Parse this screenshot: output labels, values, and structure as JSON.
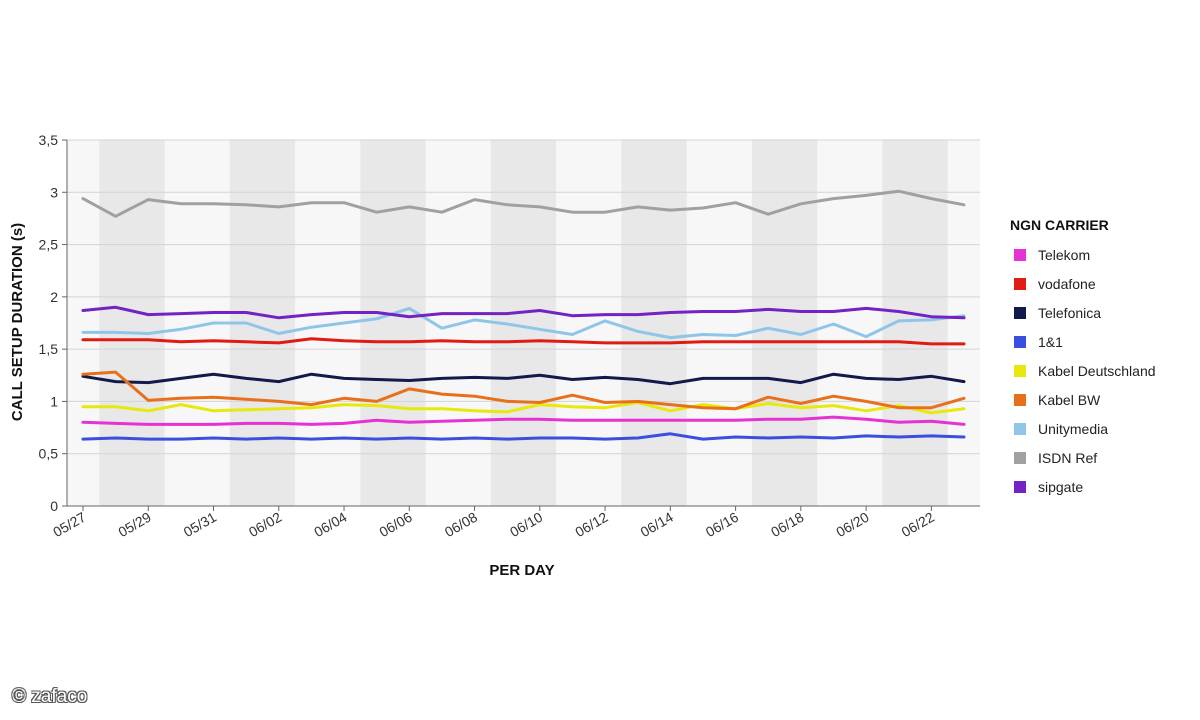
{
  "watermark": "© zafaco",
  "chart_data": {
    "type": "line",
    "xlabel": "PER DAY",
    "ylabel": "CALL SETUP DURATION (s)",
    "ylim": [
      0,
      3.5
    ],
    "yticks": [
      "0",
      "0,5",
      "1",
      "1,5",
      "2",
      "2,5",
      "3",
      "3,5"
    ],
    "x": [
      "05/27",
      "05/28",
      "05/29",
      "05/30",
      "05/31",
      "06/01",
      "06/02",
      "06/03",
      "06/04",
      "06/05",
      "06/06",
      "06/07",
      "06/08",
      "06/09",
      "06/10",
      "06/11",
      "06/12",
      "06/13",
      "06/14",
      "06/15",
      "06/16",
      "06/17",
      "06/18",
      "06/19",
      "06/20",
      "06/21",
      "06/22",
      "06/23"
    ],
    "xtick_labels": [
      "05/27",
      "05/29",
      "05/31",
      "06/02",
      "06/04",
      "06/06",
      "06/08",
      "06/10",
      "06/12",
      "06/14",
      "06/16",
      "06/18",
      "06/20",
      "06/22"
    ],
    "legend_title": "NGN CARRIER",
    "legend_position": "right",
    "grid": true,
    "series": [
      {
        "name": "Telekom",
        "color": "#e632d2",
        "values": [
          0.8,
          0.79,
          0.78,
          0.78,
          0.78,
          0.79,
          0.79,
          0.78,
          0.79,
          0.82,
          0.8,
          0.81,
          0.82,
          0.83,
          0.83,
          0.82,
          0.82,
          0.82,
          0.82,
          0.82,
          0.82,
          0.83,
          0.83,
          0.85,
          0.83,
          0.8,
          0.81,
          0.78
        ]
      },
      {
        "name": "vodafone",
        "color": "#e01b12",
        "values": [
          1.59,
          1.59,
          1.59,
          1.57,
          1.58,
          1.57,
          1.56,
          1.6,
          1.58,
          1.57,
          1.57,
          1.58,
          1.57,
          1.57,
          1.58,
          1.57,
          1.56,
          1.56,
          1.56,
          1.57,
          1.57,
          1.57,
          1.57,
          1.57,
          1.57,
          1.57,
          1.55,
          1.55
        ]
      },
      {
        "name": "Telefonica",
        "color": "#111a4a",
        "values": [
          1.24,
          1.19,
          1.18,
          1.22,
          1.26,
          1.22,
          1.19,
          1.26,
          1.22,
          1.21,
          1.2,
          1.22,
          1.23,
          1.22,
          1.25,
          1.21,
          1.23,
          1.21,
          1.17,
          1.22,
          1.22,
          1.22,
          1.18,
          1.26,
          1.22,
          1.21,
          1.24,
          1.19
        ]
      },
      {
        "name": "1&1",
        "color": "#3a4ee0",
        "values": [
          0.64,
          0.65,
          0.64,
          0.64,
          0.65,
          0.64,
          0.65,
          0.64,
          0.65,
          0.64,
          0.65,
          0.64,
          0.65,
          0.64,
          0.65,
          0.65,
          0.64,
          0.65,
          0.69,
          0.64,
          0.66,
          0.65,
          0.66,
          0.65,
          0.67,
          0.66,
          0.67,
          0.66
        ]
      },
      {
        "name": "Kabel Deutschland",
        "color": "#e8e80c",
        "values": [
          0.95,
          0.95,
          0.91,
          0.97,
          0.91,
          0.92,
          0.93,
          0.94,
          0.97,
          0.96,
          0.93,
          0.93,
          0.91,
          0.9,
          0.97,
          0.95,
          0.94,
          0.99,
          0.91,
          0.97,
          0.93,
          0.98,
          0.94,
          0.96,
          0.91,
          0.96,
          0.89,
          0.93
        ]
      },
      {
        "name": "Kabel BW",
        "color": "#e8701c",
        "values": [
          1.26,
          1.28,
          1.01,
          1.03,
          1.04,
          1.02,
          1.0,
          0.97,
          1.03,
          1.0,
          1.12,
          1.07,
          1.05,
          1.0,
          0.99,
          1.06,
          0.99,
          1.0,
          0.97,
          0.94,
          0.93,
          1.04,
          0.98,
          1.05,
          1.0,
          0.94,
          0.94,
          1.03
        ]
      },
      {
        "name": "Unitymedia",
        "color": "#8fc6e8",
        "values": [
          1.66,
          1.66,
          1.65,
          1.69,
          1.75,
          1.75,
          1.65,
          1.71,
          1.75,
          1.79,
          1.89,
          1.7,
          1.78,
          1.74,
          1.69,
          1.64,
          1.77,
          1.67,
          1.61,
          1.64,
          1.63,
          1.7,
          1.64,
          1.74,
          1.62,
          1.77,
          1.78,
          1.82
        ]
      },
      {
        "name": "ISDN Ref",
        "color": "#a0a0a0",
        "values": [
          2.94,
          2.77,
          2.93,
          2.89,
          2.89,
          2.88,
          2.86,
          2.9,
          2.9,
          2.81,
          2.86,
          2.81,
          2.93,
          2.88,
          2.86,
          2.81,
          2.81,
          2.86,
          2.83,
          2.85,
          2.9,
          2.79,
          2.89,
          2.94,
          2.97,
          3.01,
          2.94,
          2.88
        ]
      },
      {
        "name": "sipgate",
        "color": "#7322c4",
        "values": [
          1.87,
          1.9,
          1.83,
          1.84,
          1.85,
          1.85,
          1.8,
          1.83,
          1.85,
          1.85,
          1.81,
          1.84,
          1.84,
          1.84,
          1.87,
          1.82,
          1.83,
          1.83,
          1.85,
          1.86,
          1.86,
          1.88,
          1.86,
          1.86,
          1.89,
          1.86,
          1.81,
          1.8
        ]
      }
    ]
  }
}
